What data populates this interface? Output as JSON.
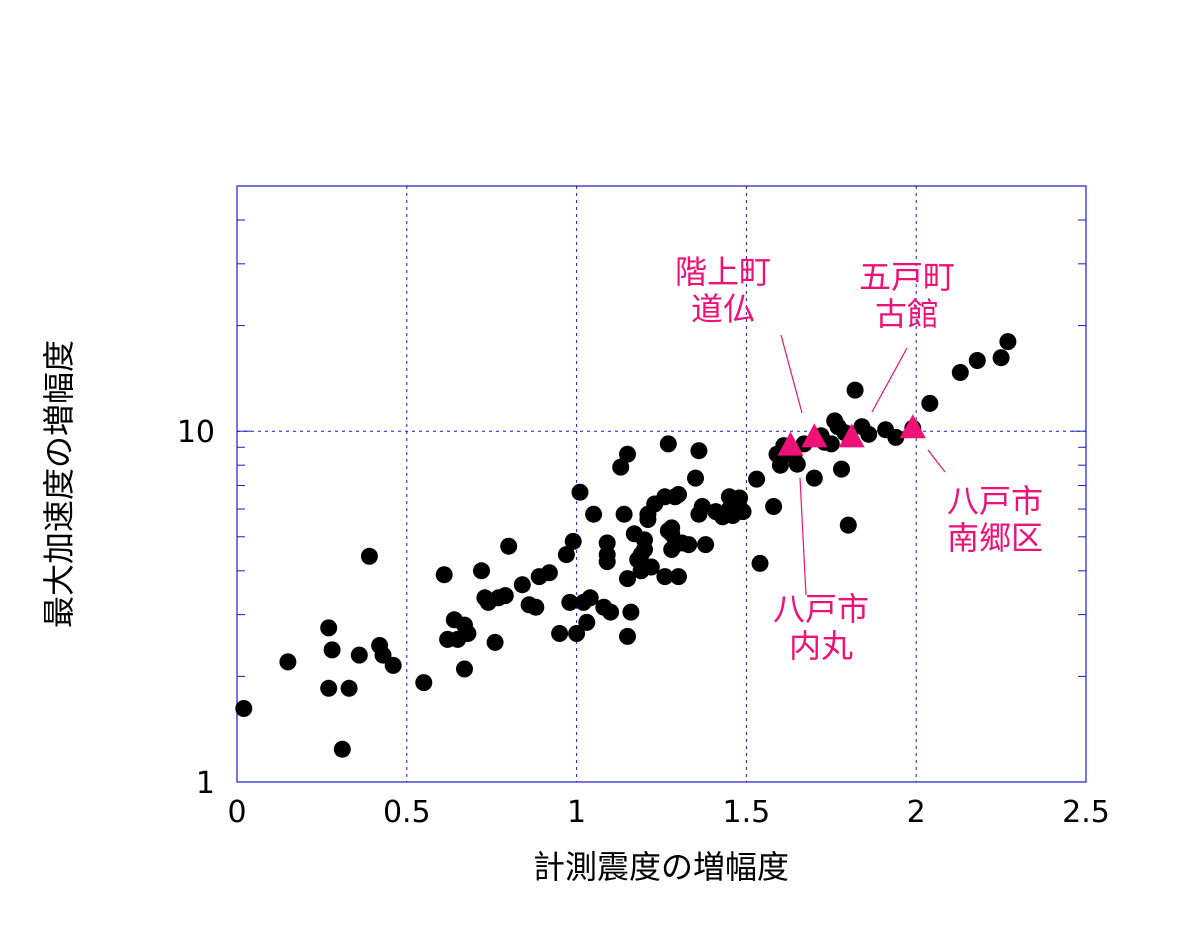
{
  "chart_data": {
    "type": "scatter",
    "title": "",
    "xlabel": "計測震度の増幅度",
    "ylabel": "最大加速度の増幅度",
    "xlim": [
      0,
      2.5
    ],
    "ylim": [
      1,
      50
    ],
    "yscale": "log",
    "grid": true,
    "x_ticks": [
      0,
      0.5,
      1,
      1.5,
      2,
      2.5
    ],
    "x_tick_labels": [
      "0",
      "0.5",
      "1",
      "1.5",
      "2",
      "2.5"
    ],
    "y_tick_labels": [
      {
        "value": 1,
        "label": "1"
      },
      {
        "value": 10,
        "label": "10"
      }
    ],
    "colors": {
      "frame": "#1a1acc",
      "points": "#000000",
      "highlight": "#ee1177"
    },
    "series": [
      {
        "marker": "circle",
        "x": [
          0.02,
          0.15,
          0.27,
          0.28,
          0.27,
          0.31,
          0.33,
          0.36,
          0.39,
          0.42,
          0.43,
          0.46,
          0.55,
          0.61,
          0.62,
          0.64,
          0.65,
          0.67,
          0.67,
          0.68,
          0.72,
          0.73,
          0.74,
          0.76,
          0.77,
          0.79,
          0.8,
          0.84,
          0.86,
          0.88,
          0.89,
          0.92,
          0.95,
          0.97,
          0.98,
          0.99,
          1.0,
          1.01,
          1.02,
          1.03,
          1.04,
          1.05,
          1.08,
          1.09,
          1.09,
          1.09,
          1.1,
          1.13,
          1.14,
          1.15,
          1.15,
          1.15,
          1.16,
          1.17,
          1.18,
          1.19,
          1.19,
          1.2,
          1.2,
          1.21,
          1.21,
          1.22,
          1.23,
          1.26,
          1.26,
          1.27,
          1.27,
          1.28,
          1.28,
          1.28,
          1.29,
          1.29,
          1.3,
          1.3,
          1.31,
          1.33,
          1.35,
          1.36,
          1.36,
          1.37,
          1.38,
          1.41,
          1.43,
          1.44,
          1.45,
          1.45,
          1.46,
          1.47,
          1.47,
          1.48,
          1.49,
          1.53,
          1.54,
          1.58,
          1.59,
          1.6,
          1.61,
          1.62,
          1.64,
          1.65,
          1.67,
          1.7,
          1.71,
          1.72,
          1.73,
          1.75,
          1.76,
          1.77,
          1.78,
          1.79,
          1.8,
          1.82,
          1.84,
          1.86,
          1.91,
          1.94,
          1.99,
          2.04,
          2.13,
          2.18,
          2.25,
          2.27
        ],
        "y": [
          1.62,
          2.2,
          1.85,
          2.38,
          2.75,
          1.24,
          1.85,
          2.3,
          4.4,
          2.45,
          2.3,
          2.15,
          1.92,
          3.9,
          2.55,
          2.9,
          2.55,
          2.1,
          2.8,
          2.65,
          4.0,
          3.35,
          3.25,
          2.5,
          3.35,
          3.4,
          4.7,
          3.65,
          3.2,
          3.15,
          3.85,
          3.95,
          2.65,
          4.45,
          3.25,
          4.85,
          2.65,
          6.7,
          3.25,
          2.85,
          3.35,
          5.8,
          3.15,
          4.8,
          4.45,
          4.25,
          3.05,
          7.9,
          5.8,
          8.6,
          3.8,
          2.6,
          3.05,
          5.1,
          4.3,
          4.0,
          4.45,
          4.6,
          4.9,
          5.6,
          5.8,
          4.1,
          6.2,
          3.85,
          6.5,
          5.2,
          9.2,
          5.3,
          5.1,
          4.6,
          4.75,
          6.5,
          3.85,
          6.6,
          4.8,
          4.75,
          7.35,
          5.8,
          8.8,
          6.1,
          4.75,
          5.9,
          5.7,
          5.8,
          6.0,
          6.5,
          5.75,
          6.3,
          6.0,
          6.45,
          5.9,
          7.3,
          4.2,
          6.1,
          8.6,
          8.0,
          9.1,
          8.8,
          8.5,
          8.05,
          9.2,
          7.35,
          9.6,
          9.7,
          9.3,
          9.2,
          10.7,
          10.3,
          7.8,
          9.9,
          5.4,
          13.1,
          10.3,
          9.8,
          10.1,
          9.6,
          10.2,
          12.0,
          14.7,
          15.9,
          16.2,
          18.0
        ]
      },
      {
        "marker": "triangle",
        "x": [
          1.63,
          1.7,
          1.81,
          1.99
        ],
        "y": [
          9.1,
          9.6,
          9.6,
          10.2
        ]
      }
    ],
    "annotations": [
      {
        "lines": [
          "階上町",
          "道仏"
        ],
        "target_x": 1.69,
        "target_y": 10.0
      },
      {
        "lines": [
          "五戸町",
          "古館"
        ],
        "target_x": 1.87,
        "target_y": 10.6
      },
      {
        "lines": [
          "八戸市",
          "内丸"
        ],
        "target_x": 1.66,
        "target_y": 8.0
      },
      {
        "lines": [
          "八戸市",
          "南郷区"
        ],
        "target_x": 2.04,
        "target_y": 8.6
      }
    ]
  }
}
